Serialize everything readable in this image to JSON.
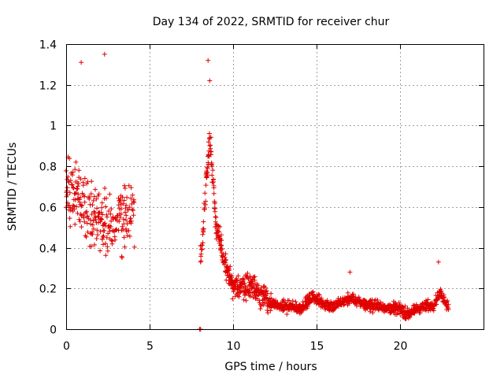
{
  "chart_data": {
    "type": "scatter",
    "title": "Day 134 of 2022, SRMTID for receiver chur",
    "xlabel": "GPS time / hours",
    "ylabel": "SRMTID / TECUs",
    "xlim": [
      0,
      25
    ],
    "ylim": [
      0,
      1.4
    ],
    "xticks": [
      0,
      5,
      10,
      15,
      20
    ],
    "xtick_labels": [
      "0",
      "5",
      "10",
      "15",
      "20"
    ],
    "yticks": [
      0,
      0.2,
      0.4,
      0.6,
      0.8,
      1.0,
      1.2,
      1.4
    ],
    "ytick_labels": [
      "0",
      "0.2",
      "0.4",
      "0.6",
      "0.8",
      "1",
      "1.2",
      "1.4"
    ],
    "grid": true,
    "marker": "+",
    "color": "#e00000",
    "series": [
      {
        "name": "SRMTID",
        "segments": [
          {
            "start": 0.0,
            "end": 4.1,
            "step": 0.025,
            "kind": "envelope",
            "profile": [
              [
                0.0,
                0.7
              ],
              [
                1.2,
                0.6
              ],
              [
                2.0,
                0.55
              ],
              [
                2.8,
                0.5
              ],
              [
                3.5,
                0.55
              ],
              [
                4.1,
                0.6
              ]
            ],
            "spread": 0.22,
            "clip": [
              0.1,
              1.36
            ]
          },
          {
            "start": 8.0,
            "end": 8.05,
            "step": 0.05,
            "kind": "points",
            "values": [
              0.0,
              0.0
            ]
          },
          {
            "start": 8.05,
            "end": 12.3,
            "step": 0.018,
            "kind": "envelope",
            "profile": [
              [
                8.1,
                0.35
              ],
              [
                8.4,
                0.75
              ],
              [
                8.6,
                0.95
              ],
              [
                9.0,
                0.5
              ],
              [
                9.5,
                0.32
              ],
              [
                10.0,
                0.2
              ],
              [
                11.0,
                0.22
              ],
              [
                12.0,
                0.15
              ],
              [
                12.3,
                0.12
              ]
            ],
            "spread": 0.09,
            "clip": [
              0.05,
              1.32
            ]
          },
          {
            "start": 12.3,
            "end": 22.9,
            "step": 0.02,
            "kind": "envelope",
            "profile": [
              [
                12.3,
                0.12
              ],
              [
                14.0,
                0.1
              ],
              [
                14.8,
                0.16
              ],
              [
                15.5,
                0.12
              ],
              [
                16.0,
                0.11
              ],
              [
                17.0,
                0.15
              ],
              [
                18.0,
                0.12
              ],
              [
                19.0,
                0.11
              ],
              [
                20.0,
                0.1
              ],
              [
                20.5,
                0.07
              ],
              [
                21.0,
                0.1
              ],
              [
                22.0,
                0.12
              ],
              [
                22.4,
                0.18
              ],
              [
                22.9,
                0.11
              ]
            ],
            "spread": 0.04,
            "clip": [
              0.0,
              0.33
            ]
          }
        ],
        "notable_values": [
          {
            "x": 0.9,
            "y": 1.31
          },
          {
            "x": 2.3,
            "y": 1.35
          },
          {
            "x": 8.5,
            "y": 1.32
          },
          {
            "x": 8.6,
            "y": 1.22
          },
          {
            "x": 22.3,
            "y": 0.33
          },
          {
            "x": 17.0,
            "y": 0.28
          }
        ]
      }
    ]
  }
}
